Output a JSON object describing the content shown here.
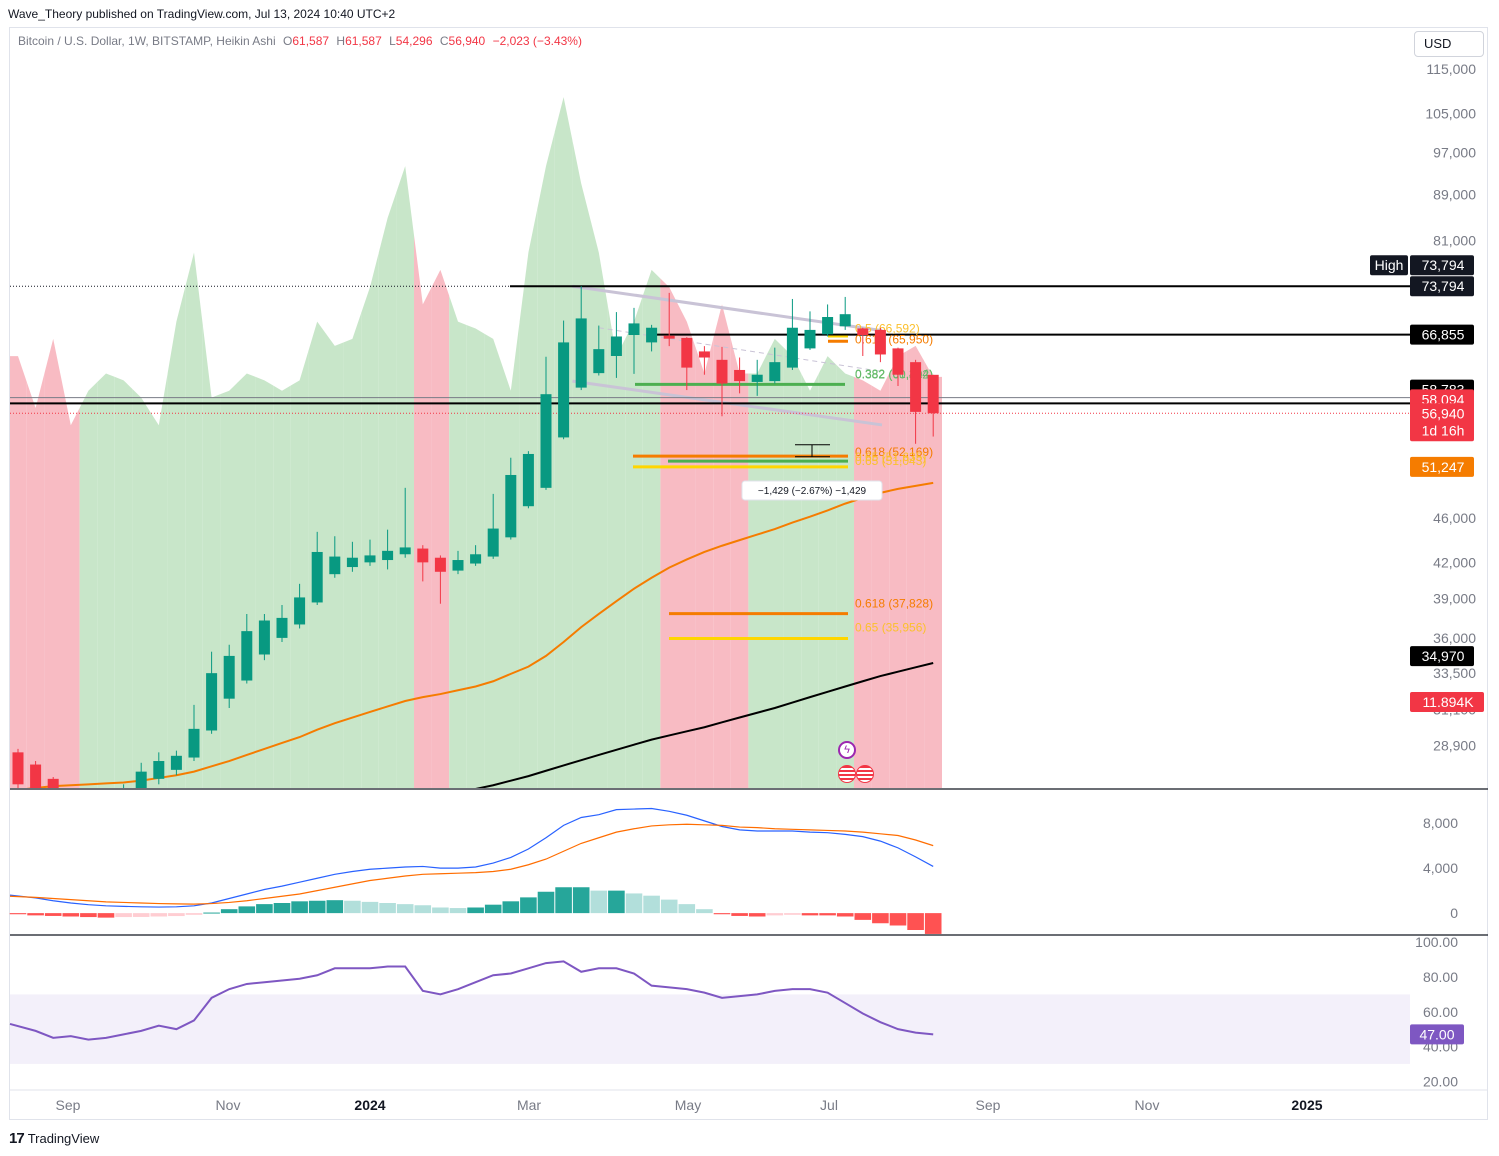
{
  "header": {
    "publisher": "Wave_Theory published on TradingView.com, Jul 13, 2024 10:40 UTC+2"
  },
  "legend": {
    "symbol": "Bitcoin / U.S. Dollar, 1W, BITSTAMP, Heikin Ashi",
    "open_key": "O",
    "open": "61,587",
    "high_key": "H",
    "high": "61,587",
    "low_key": "L",
    "low": "54,296",
    "close_key": "C",
    "close": "56,940",
    "change": "−2,023 (−3.43%)"
  },
  "currency_label": "USD",
  "footer": {
    "brand_mark": "17",
    "brand_name": "TradingView"
  },
  "colors": {
    "up": "#089981",
    "down": "#f23645",
    "ema_orange": "#f57c00",
    "ema_black": "#000000",
    "fib_green": "#4caf50",
    "fib_orange": "#f57c00",
    "fib_yellow": "#ffeb3b",
    "rsi": "#7e57c2",
    "vol_up": "#c8e6c9",
    "vol_down": "#f8bbc3",
    "macd": "#2962ff",
    "signal": "#ff6d00"
  },
  "chart_data": [
    {
      "type": "candlestick",
      "title": "Bitcoin / U.S. Dollar, 1W, BITSTAMP, Heikin Ashi",
      "y_scale": "log",
      "ylim": [
        26500,
        125000
      ],
      "x_ticks": [
        "Sep",
        "Nov",
        "2024",
        "Mar",
        "May",
        "Jul",
        "Sep",
        "Nov",
        "2025"
      ],
      "y_ticks": [
        "115,000",
        "105,000",
        "97,000",
        "89,000",
        "81,000",
        "73,794",
        "66,855",
        "58,783",
        "58,094",
        "56,940",
        "51,247",
        "46,000",
        "42,000",
        "39,000",
        "36,000",
        "34,970",
        "33,500",
        "31,100",
        "28,900"
      ],
      "candles": [
        {
          "o": 28500,
          "h": 28700,
          "l": 26400,
          "c": 26700
        },
        {
          "o": 27800,
          "h": 28000,
          "l": 26200,
          "c": 26400
        },
        {
          "o": 27000,
          "h": 27100,
          "l": 25800,
          "c": 26000
        },
        {
          "o": 26200,
          "h": 26400,
          "l": 25600,
          "c": 25800
        },
        {
          "o": 25700,
          "h": 26000,
          "l": 25400,
          "c": 25900
        },
        {
          "o": 25900,
          "h": 26300,
          "l": 25700,
          "c": 26200
        },
        {
          "o": 26100,
          "h": 26700,
          "l": 25900,
          "c": 26500
        },
        {
          "o": 26400,
          "h": 27900,
          "l": 26200,
          "c": 27400
        },
        {
          "o": 27000,
          "h": 28500,
          "l": 26700,
          "c": 28000
        },
        {
          "o": 27500,
          "h": 28600,
          "l": 27200,
          "c": 28300
        },
        {
          "o": 28200,
          "h": 31400,
          "l": 28000,
          "c": 29900
        },
        {
          "o": 29800,
          "h": 35000,
          "l": 29600,
          "c": 33500
        },
        {
          "o": 31800,
          "h": 35500,
          "l": 31200,
          "c": 34700
        },
        {
          "o": 33000,
          "h": 37800,
          "l": 32800,
          "c": 36500
        },
        {
          "o": 34800,
          "h": 37800,
          "l": 34400,
          "c": 37300
        },
        {
          "o": 36000,
          "h": 38500,
          "l": 35700,
          "c": 37500
        },
        {
          "o": 37000,
          "h": 40200,
          "l": 36700,
          "c": 39100
        },
        {
          "o": 38700,
          "h": 44700,
          "l": 38500,
          "c": 42900
        },
        {
          "o": 41000,
          "h": 44300,
          "l": 40700,
          "c": 42500
        },
        {
          "o": 41600,
          "h": 43800,
          "l": 41200,
          "c": 42400
        },
        {
          "o": 42000,
          "h": 44000,
          "l": 41700,
          "c": 42600
        },
        {
          "o": 42200,
          "h": 44900,
          "l": 41400,
          "c": 43000
        },
        {
          "o": 42700,
          "h": 48900,
          "l": 42400,
          "c": 43300
        },
        {
          "o": 43200,
          "h": 43500,
          "l": 40400,
          "c": 42000
        },
        {
          "o": 42400,
          "h": 42600,
          "l": 38600,
          "c": 41200
        },
        {
          "o": 41300,
          "h": 43000,
          "l": 41000,
          "c": 42200
        },
        {
          "o": 41900,
          "h": 43500,
          "l": 41700,
          "c": 42700
        },
        {
          "o": 42500,
          "h": 48300,
          "l": 42300,
          "c": 45000
        },
        {
          "o": 44200,
          "h": 52000,
          "l": 44000,
          "c": 50200
        },
        {
          "o": 47100,
          "h": 52700,
          "l": 46900,
          "c": 52400
        },
        {
          "o": 48900,
          "h": 63900,
          "l": 48700,
          "c": 59200
        },
        {
          "o": 54200,
          "h": 68800,
          "l": 54000,
          "c": 65800
        },
        {
          "o": 60000,
          "h": 73794,
          "l": 59700,
          "c": 69100
        },
        {
          "o": 61800,
          "h": 68100,
          "l": 61500,
          "c": 64900
        },
        {
          "o": 64000,
          "h": 70000,
          "l": 61200,
          "c": 66600
        },
        {
          "o": 66800,
          "h": 70600,
          "l": 61700,
          "c": 68400
        },
        {
          "o": 65800,
          "h": 68200,
          "l": 64600,
          "c": 67800
        },
        {
          "o": 66700,
          "h": 72800,
          "l": 65300,
          "c": 66300
        },
        {
          "o": 66400,
          "h": 66500,
          "l": 59700,
          "c": 62500
        },
        {
          "o": 64600,
          "h": 65300,
          "l": 61600,
          "c": 63800
        },
        {
          "o": 63500,
          "h": 65200,
          "l": 56600,
          "c": 60500
        },
        {
          "o": 62200,
          "h": 63800,
          "l": 59300,
          "c": 60800
        },
        {
          "o": 60700,
          "h": 63500,
          "l": 59000,
          "c": 61600
        },
        {
          "o": 60800,
          "h": 65100,
          "l": 60500,
          "c": 63200
        },
        {
          "o": 62500,
          "h": 71900,
          "l": 62200,
          "c": 67800
        },
        {
          "o": 65000,
          "h": 70100,
          "l": 64800,
          "c": 67500
        },
        {
          "o": 66900,
          "h": 71100,
          "l": 66600,
          "c": 69300
        },
        {
          "o": 68000,
          "h": 72200,
          "l": 67500,
          "c": 69700
        },
        {
          "o": 67700,
          "h": 67800,
          "l": 64000,
          "c": 66800
        },
        {
          "o": 67500,
          "h": 67800,
          "l": 63200,
          "c": 64200
        },
        {
          "o": 65000,
          "h": 65100,
          "l": 60200,
          "c": 61600
        },
        {
          "o": 63200,
          "h": 63500,
          "l": 53500,
          "c": 57100
        },
        {
          "o": 61587,
          "h": 61587,
          "l": 54296,
          "c": 56940
        }
      ],
      "ema_orange": [
        26400,
        26500,
        26600,
        26650,
        26700,
        26750,
        26800,
        26900,
        27050,
        27200,
        27400,
        27700,
        28000,
        28350,
        28700,
        29050,
        29400,
        29850,
        30250,
        30600,
        30950,
        31300,
        31650,
        31900,
        32100,
        32350,
        32600,
        32950,
        33450,
        33950,
        34700,
        35700,
        36800,
        37800,
        38800,
        39800,
        40700,
        41550,
        42250,
        42900,
        43450,
        43950,
        44450,
        44950,
        45550,
        46100,
        46700,
        47350,
        47900,
        48400,
        48800,
        49100,
        49400
      ],
      "ema_black": [
        22500,
        22600,
        22750,
        22900,
        23050,
        23200,
        23350,
        23500,
        23650,
        23800,
        23950,
        24100,
        24250,
        24400,
        24550,
        24700,
        24850,
        25000,
        25150,
        25300,
        25450,
        25600,
        25750,
        25900,
        26050,
        26250,
        26450,
        26650,
        26900,
        27150,
        27450,
        27750,
        28050,
        28350,
        28650,
        28950,
        29250,
        29500,
        29750,
        30000,
        30300,
        30600,
        30900,
        31200,
        31550,
        31900,
        32250,
        32600,
        32950,
        33300,
        33600,
        33900,
        34200
      ],
      "fib_levels": [
        {
          "label": "0.382 (61,214)",
          "value": 61214
        },
        {
          "label": "0.382 (60,402)",
          "value": 60402
        },
        {
          "label": "0.618 (65,950)",
          "value": 65950
        },
        {
          "label": "0.5 (66,592)",
          "value": 66592
        },
        {
          "label": "0.618 (52,169)",
          "value": 52169
        },
        {
          "label": "0.65 (51,635)",
          "value": 51635
        },
        {
          "label": "0.65 (51,043)",
          "value": 51043
        },
        {
          "label": "0.618 (37,828)",
          "value": 37828
        },
        {
          "label": "0.65 (35,956)",
          "value": 35956
        }
      ],
      "horizontal_levels": [
        73794,
        66855,
        58783
      ],
      "measure_label": "−1,429 (−2.67%) −1,429",
      "price_labels": {
        "high_tag": "High",
        "high": "73,794",
        "line_high": "73,794",
        "resistance": "66,855",
        "level_58783": "58,783",
        "level_58094": "58,094",
        "last_price": "56,940",
        "countdown": "1d 16h",
        "ema50": "51,247",
        "ema200": "34,970",
        "volume": "11.894K"
      },
      "volume_shading": {
        "values": [
          12.5,
          11.0,
          13.0,
          10.5,
          11.5,
          12.0,
          11.8,
          11.3,
          10.5,
          13.5,
          15.5,
          11.3,
          11.5,
          12.0,
          11.8,
          11.5,
          11.8,
          13.5,
          12.8,
          13.0,
          14.5,
          16.5,
          18.0,
          14.0,
          15.0,
          13.5,
          13.3,
          13.0,
          11.5,
          15.5,
          18.0,
          20.0,
          17.5,
          15.5,
          12.5,
          13.5,
          15.0,
          14.5,
          13.5,
          12.0,
          14.0,
          12.0,
          12.0,
          13.0,
          12.5,
          11.5,
          12.5,
          12.0,
          11.8,
          11.5,
          12.5,
          12.8,
          11.9
        ],
        "ylim": [
          0,
          22
        ]
      }
    },
    {
      "type": "line",
      "title": "",
      "ylim": [
        -1500,
        10500
      ],
      "y_ticks": [
        "8,000",
        "4,000",
        "0"
      ],
      "series": [
        {
          "key": "macd",
          "values": [
            1600,
            1350,
            1100,
            900,
            750,
            650,
            600,
            560,
            540,
            560,
            650,
            900,
            1300,
            1700,
            2100,
            2400,
            2750,
            3100,
            3450,
            3700,
            3900,
            4000,
            4100,
            4150,
            4000,
            4000,
            4100,
            4450,
            4950,
            5700,
            6700,
            7800,
            8500,
            8750,
            9200,
            9250,
            9300,
            9050,
            8700,
            8200,
            7700,
            7400,
            7300,
            7300,
            7300,
            7200,
            7150,
            7000,
            6800,
            6400,
            5800,
            5000,
            4150
          ]
        },
        {
          "key": "signal",
          "values": [
            1500,
            1400,
            1300,
            1200,
            1100,
            1000,
            950,
            900,
            850,
            820,
            800,
            850,
            950,
            1100,
            1300,
            1500,
            1700,
            2000,
            2300,
            2600,
            2900,
            3100,
            3300,
            3450,
            3500,
            3550,
            3600,
            3700,
            3900,
            4300,
            4800,
            5500,
            6200,
            6700,
            7200,
            7500,
            7750,
            7850,
            7900,
            7850,
            7800,
            7650,
            7600,
            7500,
            7450,
            7400,
            7350,
            7300,
            7200,
            7050,
            6900,
            6500,
            6000
          ]
        },
        {
          "key": "histogram",
          "values": [
            -100,
            -200,
            -250,
            -300,
            -350,
            -400,
            -350,
            -340,
            -300,
            -260,
            -150,
            50,
            350,
            600,
            800,
            900,
            1050,
            1100,
            1150,
            1100,
            1000,
            900,
            800,
            700,
            500,
            450,
            500,
            750,
            1050,
            1400,
            1900,
            2300,
            2300,
            2000,
            2000,
            1750,
            1550,
            1200,
            800,
            350,
            -100,
            -250,
            -300,
            -200,
            -150,
            -200,
            -200,
            -300,
            -600,
            -900,
            -1100,
            -1500,
            -1850
          ]
        }
      ]
    },
    {
      "type": "line",
      "title": "",
      "ylim": [
        20,
        100
      ],
      "y_ticks": [
        "100.00",
        "80.00",
        "60.00",
        "47.00",
        "40.00",
        "20.00"
      ],
      "band": [
        30,
        70
      ],
      "series": [
        {
          "key": "rsi",
          "values": [
            53,
            49,
            45,
            46,
            44,
            45,
            47,
            49,
            52,
            50,
            55,
            68,
            73,
            76,
            77,
            78,
            79,
            81,
            85,
            85,
            85,
            86,
            86,
            72,
            70,
            73,
            77,
            81,
            82,
            85,
            88,
            89,
            83,
            85,
            85,
            82,
            75,
            74,
            73,
            71,
            68,
            69,
            70,
            72,
            73,
            73,
            71,
            65,
            59,
            54,
            50,
            48,
            47
          ]
        }
      ],
      "current_label": "47.00"
    }
  ]
}
